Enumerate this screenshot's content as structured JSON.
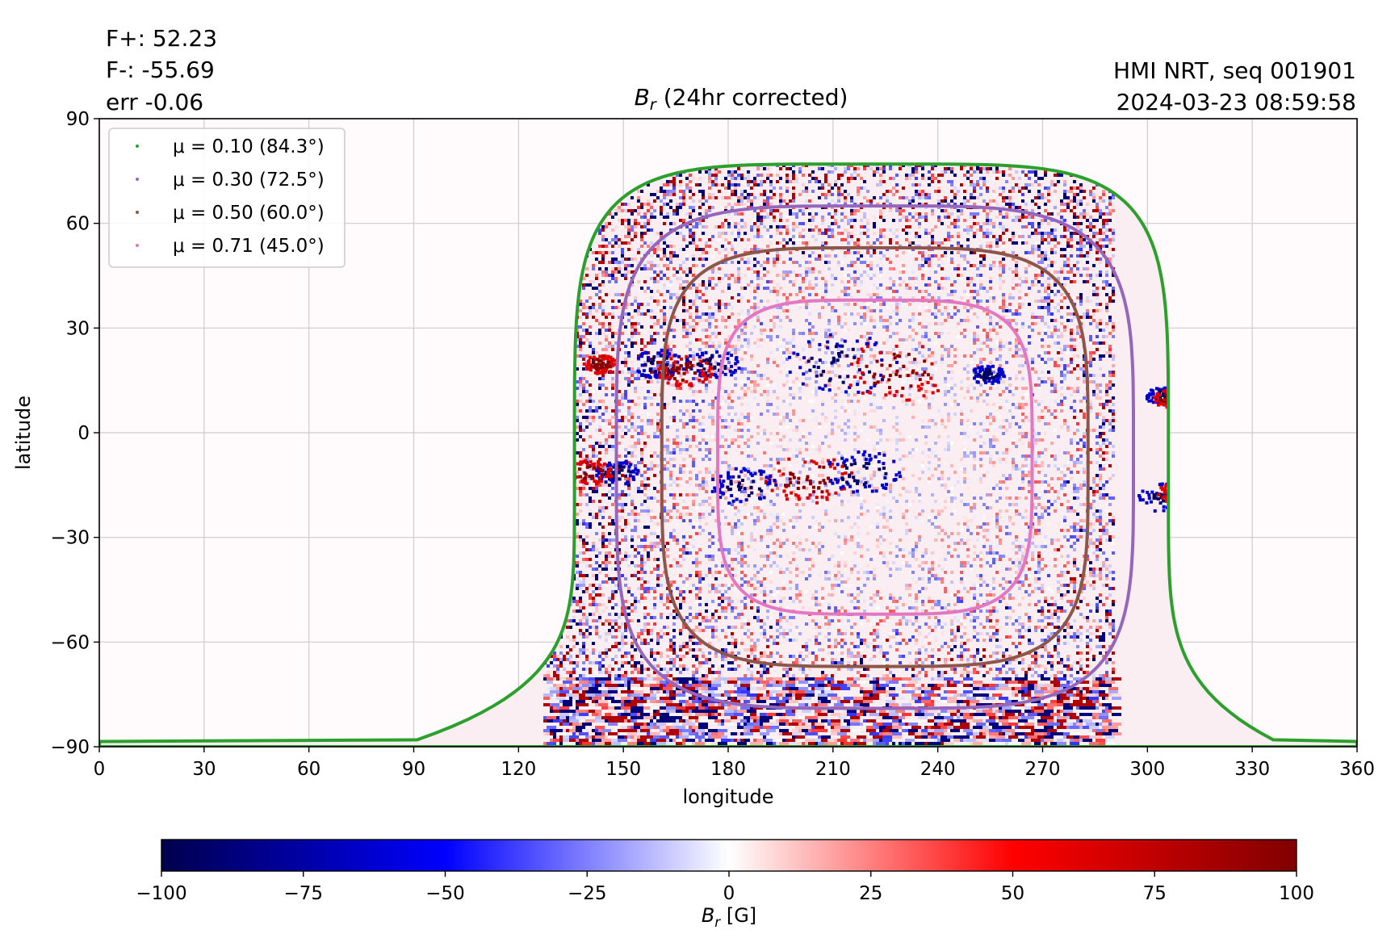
{
  "header": {
    "flux_pos": "F+: 52.23",
    "flux_neg": "F-: -55.69",
    "flux_err": "err -0.06",
    "source": "HMI NRT, seq 001901",
    "timestamp": "2024-03-23 08:59:58"
  },
  "chart_data": {
    "type": "heatmap",
    "title": "B_r (24hr corrected)",
    "xlabel": "longitude",
    "ylabel": "latitude",
    "xlim": [
      0,
      360
    ],
    "ylim": [
      -90,
      90
    ],
    "x_ticks": [
      0,
      30,
      60,
      90,
      120,
      150,
      180,
      210,
      240,
      270,
      300,
      330,
      360
    ],
    "y_ticks": [
      -90,
      -60,
      -30,
      0,
      30,
      60,
      90
    ],
    "grid": true,
    "legend_position": "top-left",
    "projection_center_longitude": 221,
    "contours": [
      {
        "name": "μ = 0.10 (84.3°)",
        "mu": 0.1,
        "angle_deg": 84.3,
        "color": "#2ca02c",
        "center_lon": 221,
        "half_width_deg": 85,
        "top_lat": 77,
        "bottom_lat": -89
      },
      {
        "name": "μ = 0.30 (72.5°)",
        "mu": 0.3,
        "angle_deg": 72.5,
        "color": "#9467bd",
        "center_lon": 222,
        "half_width_deg": 74,
        "top_lat": 65,
        "bottom_lat": -79
      },
      {
        "name": "μ = 0.50 (60.0°)",
        "mu": 0.5,
        "angle_deg": 60.0,
        "color": "#8c564b",
        "center_lon": 222,
        "half_width_deg": 61,
        "top_lat": 53,
        "bottom_lat": -67
      },
      {
        "name": "μ = 0.71 (45.0°)",
        "mu": 0.71,
        "angle_deg": 45.0,
        "color": "#e377c2",
        "center_lon": 222,
        "half_width_deg": 45,
        "top_lat": 38,
        "bottom_lat": -52
      }
    ],
    "active_regions": [
      {
        "lon": 212,
        "lat": 20,
        "polarity": "negative",
        "size_deg": 10
      },
      {
        "lon": 228,
        "lat": 18,
        "polarity": "positive",
        "size_deg": 10
      },
      {
        "lon": 175,
        "lat": 20,
        "polarity": "negative",
        "size_deg": 5
      },
      {
        "lon": 160,
        "lat": 20,
        "polarity": "negative",
        "size_deg": 5
      },
      {
        "lon": 167,
        "lat": 18,
        "polarity": "positive",
        "size_deg": 5
      },
      {
        "lon": 203,
        "lat": -13,
        "polarity": "positive",
        "size_deg": 8
      },
      {
        "lon": 218,
        "lat": -11,
        "polarity": "negative",
        "size_deg": 7
      },
      {
        "lon": 184,
        "lat": -15,
        "polarity": "negative",
        "size_deg": 6
      },
      {
        "lon": 148,
        "lat": -11,
        "polarity": "negative",
        "size_deg": 4
      },
      {
        "lon": 140,
        "lat": -11,
        "polarity": "positive",
        "size_deg": 4
      },
      {
        "lon": 305,
        "lat": -18,
        "polarity": "negative",
        "size_deg": 5
      },
      {
        "lon": 309,
        "lat": -17,
        "polarity": "positive",
        "size_deg": 4
      },
      {
        "lon": 304,
        "lat": 11,
        "polarity": "negative",
        "size_deg": 3
      },
      {
        "lon": 306,
        "lat": 10,
        "polarity": "positive",
        "size_deg": 3
      },
      {
        "lon": 143,
        "lat": 20,
        "polarity": "positive",
        "size_deg": 3
      },
      {
        "lon": 254,
        "lat": 17,
        "polarity": "negative",
        "size_deg": 3
      }
    ],
    "colorbar": {
      "label": "B_r [G]",
      "min": -100,
      "max": 100,
      "ticks": [
        -100,
        -75,
        -50,
        -25,
        0,
        25,
        50,
        75,
        100
      ],
      "colormap": "seismic",
      "colors": [
        "#00004d",
        "#0000ff",
        "#ffffff",
        "#ff0000",
        "#800000"
      ]
    }
  }
}
